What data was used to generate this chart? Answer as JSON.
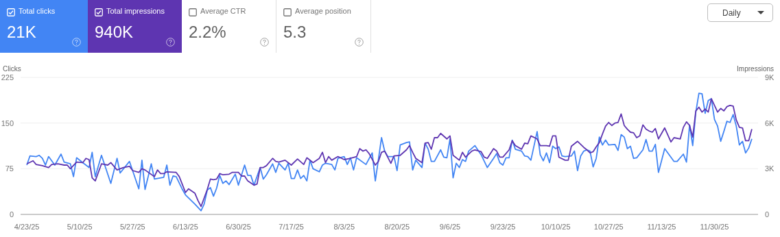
{
  "chart_data": {
    "type": "line",
    "xlabel": null,
    "ylabel": "Clicks",
    "y2label": "Impressions",
    "annotations": [
      "21K",
      "940K",
      "Average CTR",
      "2.2%",
      "Average position",
      "5.3",
      "Daily"
    ],
    "legend": "top left",
    "grid": "y",
    "xlim": [
      "2025-04-21",
      "2025-12-14"
    ],
    "xticks": [
      {
        "value": "2025-04-23",
        "label": "4/23/25"
      },
      {
        "value": "2025-05-10",
        "label": "5/10/25"
      },
      {
        "value": "2025-05-27",
        "label": "5/27/25"
      },
      {
        "value": "2025-06-13",
        "label": "6/13/25"
      },
      {
        "value": "2025-06-30",
        "label": "6/30/25"
      },
      {
        "value": "2025-07-17",
        "label": "7/17/25"
      },
      {
        "value": "2025-08-03",
        "label": "8/3/25"
      },
      {
        "value": "2025-08-20",
        "label": "8/20/25"
      },
      {
        "value": "2025-09-06",
        "label": "9/6/25"
      },
      {
        "value": "2025-09-23",
        "label": "9/23/25"
      },
      {
        "value": "2025-10-10",
        "label": "10/10/25"
      },
      {
        "value": "2025-10-27",
        "label": "10/27/25"
      },
      {
        "value": "2025-11-13",
        "label": "11/13/25"
      },
      {
        "value": "2025-11-30",
        "label": "11/30/25"
      }
    ],
    "ylim": [
      0,
      225
    ],
    "yticks": [
      0,
      75,
      150,
      225
    ],
    "y2lim": [
      0,
      9000
    ],
    "y2ticks": [
      0,
      {
        "value": 3000,
        "label": "3K"
      },
      {
        "value": 6000,
        "label": "6K"
      },
      {
        "value": 9000,
        "label": "9K"
      }
    ],
    "series": [
      {
        "name": "Total clicks",
        "color": "#4285f4",
        "x": [
          "2025-04-23",
          "2025-04-24",
          "2025-04-26",
          "2025-04-27",
          "2025-04-28",
          "2025-04-29",
          "2025-04-30",
          "2025-05-02",
          "2025-05-04",
          "2025-05-05",
          "2025-05-07",
          "2025-05-08",
          "2025-05-09",
          "2025-05-11",
          "2025-05-13",
          "2025-05-14",
          "2025-05-15",
          "2025-05-17",
          "2025-05-20",
          "2025-05-22",
          "2025-05-23",
          "2025-05-26",
          "2025-05-27",
          "2025-05-29",
          "2025-05-30",
          "2025-05-31",
          "2025-06-02",
          "2025-06-03",
          "2025-06-06",
          "2025-06-07",
          "2025-06-08",
          "2025-06-09",
          "2025-06-10",
          "2025-06-12",
          "2025-06-13",
          "2025-06-16",
          "2025-06-18",
          "2025-06-19",
          "2025-06-20",
          "2025-06-21",
          "2025-06-22",
          "2025-06-23",
          "2025-06-24",
          "2025-06-25",
          "2025-06-26",
          "2025-06-27",
          "2025-06-29",
          "2025-06-30",
          "2025-07-02",
          "2025-07-03",
          "2025-07-04",
          "2025-07-05",
          "2025-07-07",
          "2025-07-08",
          "2025-07-09",
          "2025-07-11",
          "2025-07-12",
          "2025-07-13",
          "2025-07-15",
          "2025-07-16",
          "2025-07-17",
          "2025-07-18",
          "2025-07-19",
          "2025-07-20",
          "2025-07-21",
          "2025-07-22",
          "2025-07-23",
          "2025-07-24",
          "2025-07-26",
          "2025-07-27",
          "2025-07-28",
          "2025-07-30",
          "2025-07-31",
          "2025-08-01",
          "2025-08-03",
          "2025-08-04",
          "2025-08-05",
          "2025-08-06",
          "2025-08-07",
          "2025-08-10",
          "2025-08-12",
          "2025-08-13",
          "2025-08-15",
          "2025-08-16",
          "2025-08-17",
          "2025-08-19",
          "2025-08-20",
          "2025-08-21",
          "2025-08-23",
          "2025-08-24",
          "2025-08-25",
          "2025-08-26",
          "2025-08-28",
          "2025-08-29",
          "2025-08-30",
          "2025-08-31",
          "2025-09-01",
          "2025-09-03",
          "2025-09-04",
          "2025-09-05",
          "2025-09-06",
          "2025-09-07",
          "2025-09-08",
          "2025-09-09",
          "2025-09-10",
          "2025-09-11",
          "2025-09-12",
          "2025-09-14",
          "2025-09-16",
          "2025-09-18",
          "2025-09-20",
          "2025-09-21",
          "2025-09-22",
          "2025-09-23",
          "2025-09-24",
          "2025-09-25",
          "2025-09-26",
          "2025-09-27",
          "2025-09-29",
          "2025-09-30",
          "2025-10-01",
          "2025-10-02",
          "2025-10-04",
          "2025-10-05",
          "2025-10-06",
          "2025-10-07",
          "2025-10-08",
          "2025-10-09",
          "2025-10-10",
          "2025-10-11",
          "2025-10-12",
          "2025-10-13",
          "2025-10-15",
          "2025-10-16",
          "2025-10-17",
          "2025-10-18",
          "2025-10-19",
          "2025-10-20",
          "2025-10-21",
          "2025-10-22",
          "2025-10-23",
          "2025-10-24",
          "2025-10-25",
          "2025-10-26",
          "2025-10-27",
          "2025-10-29",
          "2025-10-30",
          "2025-10-31",
          "2025-11-01",
          "2025-11-02",
          "2025-11-03",
          "2025-11-04",
          "2025-11-05",
          "2025-11-07",
          "2025-11-08",
          "2025-11-09",
          "2025-11-10",
          "2025-11-11",
          "2025-11-12",
          "2025-11-14",
          "2025-11-16",
          "2025-11-17",
          "2025-11-18",
          "2025-11-20",
          "2025-11-21",
          "2025-11-22",
          "2025-11-23",
          "2025-11-24",
          "2025-11-25",
          "2025-11-26",
          "2025-11-27",
          "2025-11-28",
          "2025-11-29",
          "2025-11-30",
          "2025-12-01",
          "2025-12-02",
          "2025-12-03",
          "2025-12-04",
          "2025-12-05",
          "2025-12-06",
          "2025-12-07",
          "2025-12-08",
          "2025-12-09",
          "2025-12-10",
          "2025-12-11",
          "2025-12-12"
        ],
        "values": [
          81,
          96,
          95,
          97,
          92,
          81,
          95,
          81,
          99,
          86,
          83,
          62,
          93,
          85,
          77,
          102,
          62,
          97,
          51,
          92,
          68,
          87,
          72,
          42,
          89,
          41,
          83,
          58,
          61,
          81,
          48,
          63,
          62,
          41,
          32,
          17,
          6,
          17,
          40,
          44,
          30,
          43,
          64,
          51,
          55,
          49,
          66,
          48,
          81,
          64,
          64,
          48,
          77,
          58,
          65,
          83,
          69,
          84,
          73,
          84,
          59,
          59,
          73,
          59,
          64,
          55,
          89,
          75,
          70,
          81,
          84,
          82,
          73,
          92,
          95,
          82,
          93,
          73,
          93,
          82,
          101,
          55,
          126,
          104,
          95,
          95,
          72,
          114,
          118,
          119,
          73,
          89,
          77,
          117,
          107,
          87,
          87,
          106,
          94,
          93,
          124,
          60,
          84,
          77,
          90,
          87,
          104,
          113,
          98,
          77,
          92,
          100,
          85,
          81,
          93,
          93,
          122,
          107,
          104,
          96,
          95,
          89,
          136,
          98,
          88,
          101,
          85,
          112,
          108,
          111,
          96,
          95,
          96,
          104,
          72,
          96,
          104,
          106,
          104,
          78,
          92,
          127,
          114,
          122,
          114,
          115,
          105,
          131,
          127,
          108,
          112,
          92,
          93,
          106,
          123,
          104,
          104,
          115,
          69,
          108,
          94,
          87,
          87,
          99,
          86,
          147,
          113,
          168,
          199,
          198,
          166,
          187,
          190,
          156,
          145,
          120,
          136,
          153,
          151,
          164,
          145,
          114,
          120,
          101,
          109,
          124
        ]
      },
      {
        "name": "Total impressions",
        "color": "#5e35b1",
        "axis": "y2",
        "x": [
          "2025-04-23",
          "2025-04-25",
          "2025-04-26",
          "2025-04-28",
          "2025-04-30",
          "2025-05-01",
          "2025-05-03",
          "2025-05-05",
          "2025-05-06",
          "2025-05-07",
          "2025-05-09",
          "2025-05-11",
          "2025-05-12",
          "2025-05-13",
          "2025-05-14",
          "2025-05-15",
          "2025-05-17",
          "2025-05-19",
          "2025-05-20",
          "2025-05-22",
          "2025-05-24",
          "2025-05-26",
          "2025-05-27",
          "2025-05-29",
          "2025-05-30",
          "2025-05-31",
          "2025-06-03",
          "2025-06-04",
          "2025-06-05",
          "2025-06-06",
          "2025-06-07",
          "2025-06-10",
          "2025-06-11",
          "2025-06-13",
          "2025-06-14",
          "2025-06-16",
          "2025-06-17",
          "2025-06-18",
          "2025-06-20",
          "2025-06-21",
          "2025-06-22",
          "2025-06-23",
          "2025-06-24",
          "2025-06-25",
          "2025-06-27",
          "2025-06-28",
          "2025-06-29",
          "2025-06-30",
          "2025-07-01",
          "2025-07-02",
          "2025-07-03",
          "2025-07-05",
          "2025-07-06",
          "2025-07-07",
          "2025-07-08",
          "2025-07-09",
          "2025-07-11",
          "2025-07-12",
          "2025-07-13",
          "2025-07-15",
          "2025-07-17",
          "2025-07-19",
          "2025-07-21",
          "2025-07-22",
          "2025-07-24",
          "2025-07-26",
          "2025-07-27",
          "2025-07-28",
          "2025-07-29",
          "2025-07-30",
          "2025-08-01",
          "2025-08-03",
          "2025-08-05",
          "2025-08-07",
          "2025-08-08",
          "2025-08-09",
          "2025-08-10",
          "2025-08-11",
          "2025-08-13",
          "2025-08-14",
          "2025-08-15",
          "2025-08-16",
          "2025-08-18",
          "2025-08-19",
          "2025-08-21",
          "2025-08-23",
          "2025-08-24",
          "2025-08-25",
          "2025-08-26",
          "2025-08-28",
          "2025-08-29",
          "2025-08-30",
          "2025-08-31",
          "2025-09-01",
          "2025-09-02",
          "2025-09-03",
          "2025-09-05",
          "2025-09-06",
          "2025-09-07",
          "2025-09-09",
          "2025-09-10",
          "2025-09-11",
          "2025-09-13",
          "2025-09-14",
          "2025-09-16",
          "2025-09-17",
          "2025-09-18",
          "2025-09-20",
          "2025-09-21",
          "2025-09-22",
          "2025-09-23",
          "2025-09-25",
          "2025-09-26",
          "2025-09-27",
          "2025-09-29",
          "2025-09-30",
          "2025-10-01",
          "2025-10-02",
          "2025-10-04",
          "2025-10-05",
          "2025-10-07",
          "2025-10-08",
          "2025-10-09",
          "2025-10-10",
          "2025-10-11",
          "2025-10-13",
          "2025-10-14",
          "2025-10-15",
          "2025-10-17",
          "2025-10-19",
          "2025-10-20",
          "2025-10-21",
          "2025-10-22",
          "2025-10-23",
          "2025-10-24",
          "2025-10-25",
          "2025-10-26",
          "2025-10-27",
          "2025-10-28",
          "2025-10-29",
          "2025-10-30",
          "2025-10-31",
          "2025-11-01",
          "2025-11-02",
          "2025-11-03",
          "2025-11-04",
          "2025-11-05",
          "2025-11-06",
          "2025-11-07",
          "2025-11-08",
          "2025-11-09",
          "2025-11-10",
          "2025-11-11",
          "2025-11-12",
          "2025-11-14",
          "2025-11-16",
          "2025-11-17",
          "2025-11-19",
          "2025-11-20",
          "2025-11-21",
          "2025-11-22",
          "2025-11-23",
          "2025-11-24",
          "2025-11-25",
          "2025-11-26",
          "2025-11-27",
          "2025-11-28",
          "2025-11-29",
          "2025-11-30",
          "2025-12-01",
          "2025-12-02",
          "2025-12-03",
          "2025-12-04",
          "2025-12-05",
          "2025-12-06",
          "2025-12-07",
          "2025-12-08",
          "2025-12-09",
          "2025-12-10",
          "2025-12-11",
          "2025-12-12"
        ],
        "values": [
          3320,
          3520,
          3280,
          3200,
          3080,
          3280,
          3320,
          3240,
          3240,
          3000,
          3440,
          3400,
          3680,
          3600,
          2400,
          2200,
          3320,
          3240,
          3400,
          2920,
          3080,
          3160,
          2880,
          2760,
          3000,
          2920,
          2480,
          2920,
          2680,
          2680,
          2800,
          2760,
          2480,
          1440,
          1680,
          1400,
          920,
          520,
          1640,
          2320,
          2280,
          2320,
          2680,
          2600,
          2640,
          2760,
          2760,
          2760,
          2520,
          2520,
          2200,
          1920,
          2000,
          3080,
          3080,
          3200,
          3680,
          3480,
          3440,
          3560,
          3240,
          3640,
          3280,
          3720,
          3400,
          3680,
          4080,
          3400,
          3800,
          3560,
          3800,
          3600,
          3680,
          3800,
          4320,
          4160,
          4240,
          4000,
          3240,
          3480,
          4080,
          4160,
          3360,
          3840,
          3880,
          4240,
          4520,
          4080,
          3680,
          3400,
          4680,
          4720,
          4280,
          5040,
          5040,
          5320,
          4960,
          5160,
          3880,
          3560,
          4080,
          3760,
          4160,
          4240,
          4120,
          3760,
          3680,
          4320,
          4160,
          3760,
          3760,
          4240,
          4840,
          4520,
          4280,
          4680,
          4640,
          5160,
          4960,
          4520,
          4520,
          4480,
          5160,
          5160,
          3760,
          3560,
          3560,
          4480,
          4800,
          4400,
          4240,
          4040,
          4120,
          4440,
          4720,
          5280,
          5800,
          6040,
          5840,
          6000,
          6040,
          6600,
          5840,
          5600,
          5400,
          5360,
          5040,
          5160,
          5880,
          5600,
          5480,
          5400,
          5640,
          4960,
          5680,
          4760,
          5040,
          4960,
          5720,
          6080,
          5840,
          5080,
          6800,
          7040,
          6720,
          6920,
          6720,
          7600,
          7160,
          6720,
          6960,
          6800,
          7080,
          7160,
          7120,
          6200,
          5720,
          5680,
          4840,
          4840,
          5600
        ]
      }
    ]
  }
}
